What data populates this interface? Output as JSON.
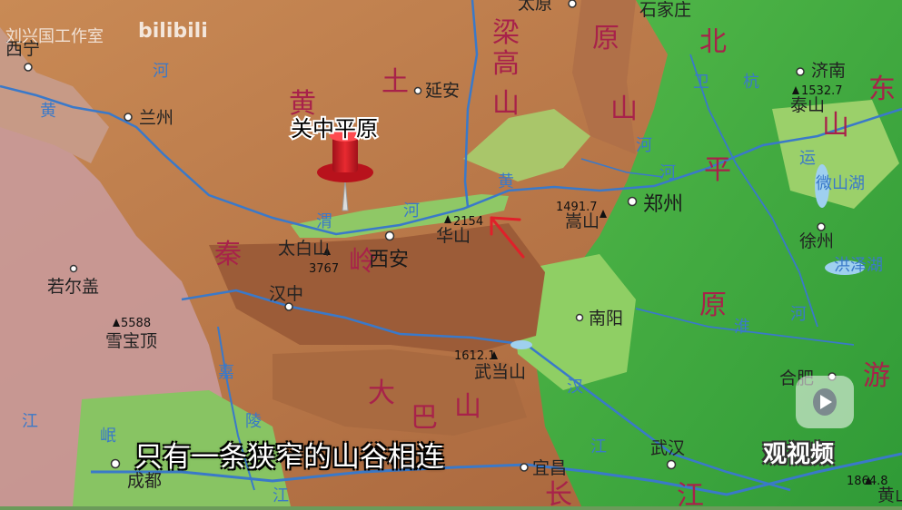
{
  "map": {
    "title_marker": "关中平原",
    "caption": "只有一条狭窄的山谷相连",
    "watermark": {
      "studio": "刘兴国工作室",
      "brand": "bilibili"
    },
    "logo": "观视频",
    "regions": {
      "huang": "黄",
      "tu": "土",
      "liang": "梁",
      "gao": "高",
      "shan1": "山",
      "yuan1": "原",
      "shan2": "山",
      "bei": "北",
      "ping": "平",
      "yuan2": "原",
      "dong": "东",
      "shan3": "山",
      "qin": "秦",
      "ling": "岭",
      "da": "大",
      "ba": "巴",
      "shan4": "山",
      "you": "游",
      "chang": "长",
      "jiang": "江"
    },
    "rivers": {
      "he1": "河",
      "huang1": "黄",
      "wei": "渭",
      "he2": "河",
      "huang2": "黄",
      "he3": "河",
      "wei2": "卫",
      "hang": "杭",
      "yun": "运",
      "weishanhu": "微山湖",
      "hongzehu": "洪泽湖",
      "huai": "淮",
      "he4": "河",
      "han": "汉",
      "jiang2": "江",
      "jia": "嘉",
      "ling2": "陵",
      "min": "岷",
      "jiang3": "江",
      "jiang4": "江",
      "he5": "河"
    },
    "cities": {
      "taiyuan": "太原",
      "shijiazhuang": "石家庄",
      "xining": "西宁",
      "lanzhou": "兰州",
      "yanan": "延安",
      "jinan": "济南",
      "zhengzhou": "郑州",
      "xian": "西安",
      "hanzhong": "汉中",
      "xuzhou": "徐州",
      "nanyang": "南阳",
      "ruoergai": "若尔盖",
      "hefei": "合肥",
      "wuhan": "武汉",
      "chengdu": "成都",
      "yichang": "宜昌"
    },
    "peaks": {
      "taishan_h": "1532.7",
      "taishan": "泰山",
      "huashan_h": "2154",
      "huashan": "华山",
      "songshan_h": "1491.7",
      "songshan": "嵩山",
      "taibai": "太白山",
      "taibai_h": "3767",
      "xuebao_h": "5588",
      "xuebao": "雪宝顶",
      "wudang_h": "1612.1",
      "wudang": "武当山",
      "huangshan_h": "1864.8",
      "huangshan": "黄山"
    },
    "colors": {
      "plateau": "#b86e3e",
      "mountain": "#a05a3a",
      "plain": "#3aa83a",
      "lowland": "#7bc95a",
      "water": "#3a79c9",
      "region_text": "#a8224a",
      "arrow": "#e0202a"
    }
  }
}
